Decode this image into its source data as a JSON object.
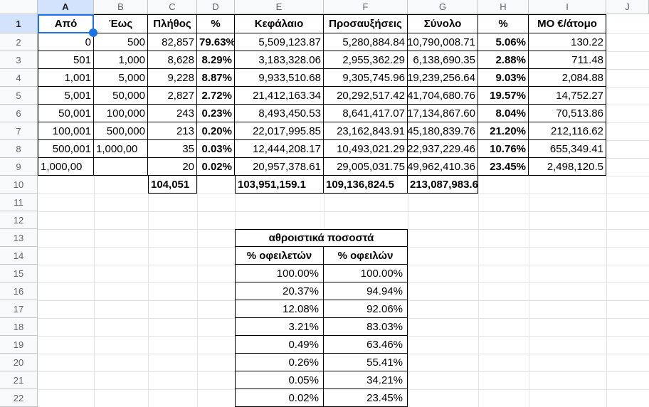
{
  "sheet": {
    "selected_cell": "A1",
    "column_headers": [
      "A",
      "B",
      "C",
      "D",
      "E",
      "F",
      "G",
      "H",
      "I",
      "J"
    ],
    "row_headers": [
      "1",
      "2",
      "3",
      "4",
      "5",
      "6",
      "7",
      "8",
      "9",
      "10",
      "11",
      "12",
      "13",
      "14",
      "15",
      "16",
      "17",
      "18",
      "19",
      "20",
      "21",
      "22"
    ]
  },
  "main_table": {
    "headers": [
      "Από",
      "Έως",
      "Πλήθος",
      "%",
      "Κεφάλαιο",
      "Προσαυξήσεις",
      "Σύνολο",
      "%",
      "ΜΟ €/άτομο"
    ],
    "rows": [
      [
        "0",
        "500",
        "82,857",
        "79.63%",
        "5,509,123.87",
        "5,280,884.84",
        "10,790,008.71",
        "5.06%",
        "130.22"
      ],
      [
        "501",
        "1,000",
        "8,628",
        "8.29%",
        "3,183,328.06",
        "2,955,362.29",
        "6,138,690.35",
        "2.88%",
        "711.48"
      ],
      [
        "1,001",
        "5,000",
        "9,228",
        "8.87%",
        "9,933,510.68",
        "9,305,745.96",
        "19,239,256.64",
        "9.03%",
        "2,084.88"
      ],
      [
        "5,001",
        "50,000",
        "2,827",
        "2.72%",
        "21,412,163.34",
        "20,292,517.42",
        "41,704,680.76",
        "19.57%",
        "14,752.27"
      ],
      [
        "50,001",
        "100,000",
        "243",
        "0.23%",
        "8,493,450.53",
        "8,641,417.07",
        "17,134,867.60",
        "8.04%",
        "70,513.86"
      ],
      [
        "100,001",
        "500,000",
        "213",
        "0.20%",
        "22,017,995.85",
        "23,162,843.91",
        "45,180,839.76",
        "21.20%",
        "212,116.62"
      ],
      [
        "500,001",
        "1,000,00",
        "35",
        "0.03%",
        "12,444,208.17",
        "10,493,021.29",
        "22,937,229.46",
        "10.76%",
        "655,349.41"
      ],
      [
        "1,000,00",
        "",
        "20",
        "0.02%",
        "20,957,378.61",
        "29,005,031.75",
        "49,962,410.36",
        "23.45%",
        "2,498,120.5"
      ]
    ],
    "totals_row": {
      "plithos": "104,051",
      "kefalaio": "103,951,159.1",
      "prosauxiseis": "109,136,824.5",
      "synolo": "213,087,983.6"
    }
  },
  "cumulative_table": {
    "title": "αθροιστικά ποσοστά",
    "headers": [
      "% οφειλετών",
      "% οφειλών"
    ],
    "rows": [
      [
        "100.00%",
        "100.00%"
      ],
      [
        "20.37%",
        "94.94%"
      ],
      [
        "12.08%",
        "92.06%"
      ],
      [
        "3.21%",
        "83.03%"
      ],
      [
        "0.49%",
        "63.46%"
      ],
      [
        "0.26%",
        "55.41%"
      ],
      [
        "0.05%",
        "34.21%"
      ],
      [
        "0.02%",
        "23.45%"
      ]
    ]
  },
  "colors": {
    "selection_blue": "#1a73e8",
    "header_bg": "#f8f9fa",
    "selected_header_bg": "#d3e3fd",
    "header_divider": "#c4c7c5",
    "gridline": "#e1e3e8",
    "table_border": "#000000",
    "header_text": "#5f6368",
    "cell_text": "#000000"
  }
}
